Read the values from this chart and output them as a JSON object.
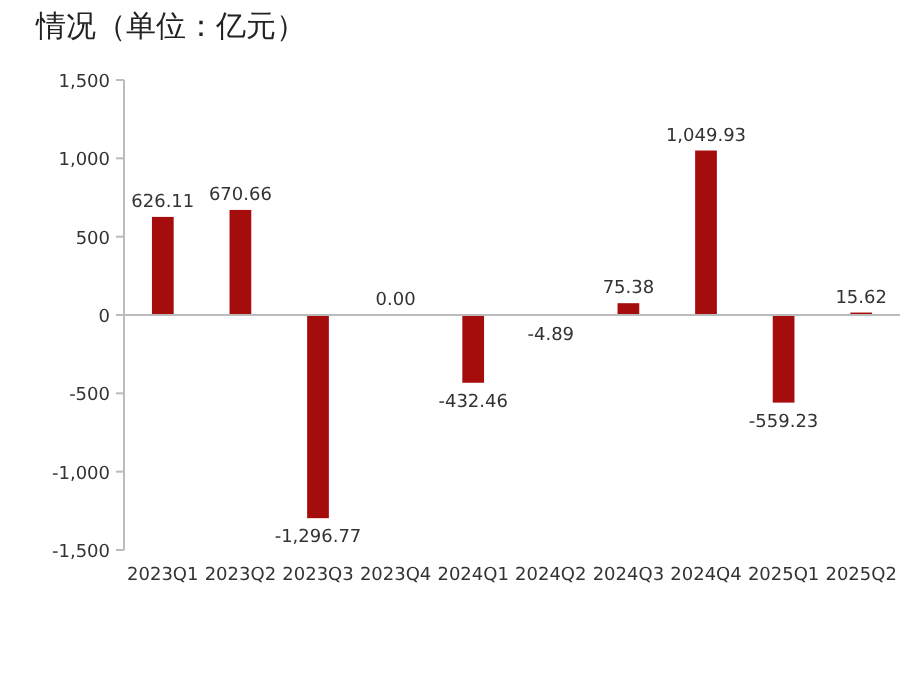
{
  "chart_data": {
    "type": "bar",
    "title": "情况（单位：亿元）",
    "categories": [
      "2023Q1",
      "2023Q2",
      "2023Q3",
      "2023Q4",
      "2024Q1",
      "2024Q2",
      "2024Q3",
      "2024Q4",
      "2025Q1",
      "2025Q2"
    ],
    "values": [
      626.11,
      670.66,
      -1296.77,
      0.0,
      -432.46,
      -4.89,
      75.38,
      1049.93,
      -559.23,
      15.62
    ],
    "color": "#a50d0d",
    "ylim": [
      -1500,
      1500
    ],
    "yticks": [
      {
        "value": -1500,
        "label": "-1,500"
      },
      {
        "value": -1000,
        "label": "-1,000"
      },
      {
        "value": -500,
        "label": "-500"
      },
      0,
      500,
      {
        "value": 1000,
        "label": "1,000"
      },
      {
        "value": 1500,
        "label": "1,500"
      }
    ],
    "value_labels": [
      "626.11",
      "670.66",
      "-1,296.77",
      "0.00",
      "-432.46",
      "-4.89",
      "75.38",
      "1,049.93",
      "-559.23",
      "15.62"
    ]
  }
}
